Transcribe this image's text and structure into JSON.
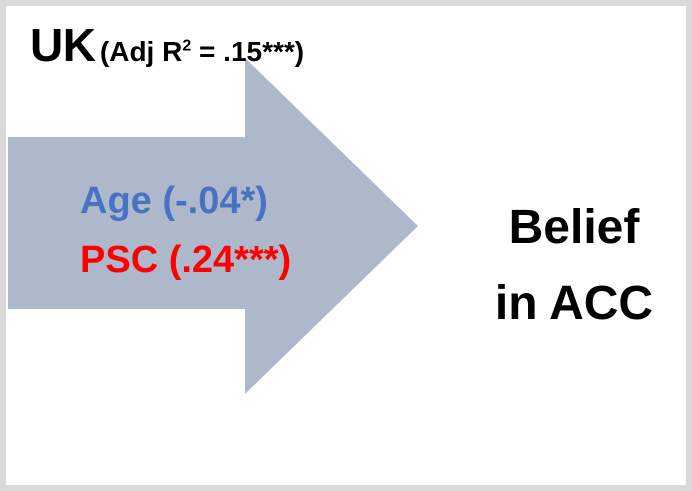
{
  "title": {
    "country": "UK",
    "stat_prefix": "(Adj R",
    "stat_superscript": "2",
    "stat_suffix": " = .15***)"
  },
  "predictors": [
    {
      "text": "Age (-.04*)",
      "color": "#4a72c4"
    },
    {
      "text": "PSC (.24***)",
      "color": "#ff0000"
    }
  ],
  "outcome": {
    "line1": "Belief",
    "line2": "in ACC"
  },
  "colors": {
    "arrow_fill": "#adb9ca",
    "frame_border": "#d9d9d9",
    "text": "#000000"
  }
}
